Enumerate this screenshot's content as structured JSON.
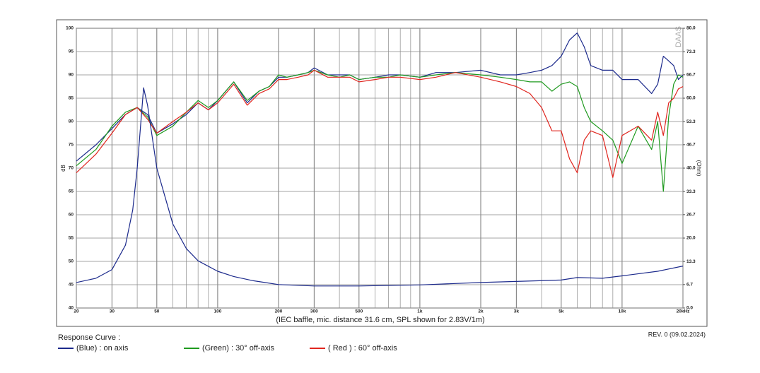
{
  "chart_data": {
    "type": "line",
    "caption": "(IEC baffle, mic. distance 31.6 cm, SPL shown for 2.83V/1m)",
    "legend_title": "Response Curve :",
    "revision": "REV. 0 (09.02.2024)",
    "watermark": "DAAS",
    "ylabel": "dB",
    "y2label": "(Ohm)",
    "xscale": "log",
    "grid": true,
    "xlim": [
      20,
      20000
    ],
    "ylim": [
      40,
      100
    ],
    "y2lim": [
      0,
      80
    ],
    "xticks": [
      20,
      30,
      50,
      100,
      200,
      300,
      500,
      {
        "value": 1000,
        "label": "1k"
      },
      {
        "value": 2000,
        "label": "2k"
      },
      {
        "value": 3000,
        "label": "3k"
      },
      {
        "value": 5000,
        "label": "5k"
      },
      {
        "value": 10000,
        "label": "10k"
      },
      {
        "value": 20000,
        "label": "20kHz"
      }
    ],
    "xminorticks": [
      40,
      60,
      70,
      80,
      90,
      400,
      600,
      700,
      800,
      900,
      4000,
      6000,
      7000,
      8000,
      9000
    ],
    "yticks": [
      40,
      45,
      50,
      55,
      60,
      65,
      70,
      75,
      80,
      85,
      90,
      95,
      100
    ],
    "y2ticks": [
      {
        "value": 0,
        "label": "0.0"
      },
      6.7,
      13.3,
      {
        "value": 20,
        "label": "20.0"
      },
      26.7,
      33.3,
      {
        "value": 40,
        "label": "40.0"
      },
      46.7,
      53.3,
      {
        "value": 60,
        "label": "60.0"
      },
      66.7,
      73.3,
      {
        "value": 80,
        "label": "80.0"
      }
    ],
    "x": [
      20,
      25,
      30,
      35,
      40,
      45,
      50,
      60,
      70,
      80,
      90,
      100,
      120,
      140,
      160,
      180,
      200,
      220,
      250,
      280,
      300,
      350,
      400,
      450,
      500,
      600,
      700,
      800,
      1000,
      1200,
      1500,
      2000,
      2500,
      3000,
      3500,
      4000,
      4500,
      5000,
      5500,
      6000,
      6500,
      7000,
      8000,
      9000,
      10000,
      12000,
      14000,
      15000,
      16000,
      17000,
      18000,
      19000,
      20000
    ],
    "series": [
      {
        "name": "(Blue)  : on axis",
        "color": "#1c2a8c",
        "values": [
          71.5,
          75,
          78.5,
          81.5,
          83,
          81.5,
          77.5,
          79.5,
          81.5,
          84,
          82.5,
          84.5,
          88.5,
          84,
          86.5,
          87.5,
          89.5,
          89.5,
          90,
          90.5,
          91.5,
          90,
          90,
          90,
          89,
          89.5,
          90,
          90,
          89.5,
          90.5,
          90.5,
          91,
          90,
          90,
          90.5,
          91,
          92,
          94,
          97.5,
          99,
          96,
          92,
          91,
          91,
          89,
          89,
          86,
          88,
          94,
          93,
          92,
          89,
          90
        ]
      },
      {
        "name": "(Green) : 30° off-axis",
        "color": "#1f9a1f",
        "values": [
          70.5,
          74,
          79,
          82,
          83,
          81,
          77,
          79,
          82,
          84.5,
          83,
          84.5,
          88.5,
          84.5,
          86.5,
          87.5,
          90,
          89.5,
          90,
          90.5,
          91,
          90,
          89.5,
          90,
          89,
          89.5,
          89.5,
          90,
          89.5,
          90,
          90.5,
          90,
          89.5,
          89,
          88.5,
          88.5,
          86.5,
          88,
          88.5,
          87.5,
          83,
          80,
          78,
          76,
          71,
          79,
          74,
          80,
          65,
          81,
          88,
          90,
          89.5
        ]
      },
      {
        "name": "( Red ) : 60° off-axis",
        "color": "#e0261f",
        "values": [
          69,
          73,
          77.5,
          81.5,
          83,
          80.5,
          77.5,
          80,
          82,
          84,
          82.5,
          84,
          88,
          83.5,
          86,
          87,
          89,
          89,
          89.5,
          90,
          91,
          89.5,
          89.5,
          89.5,
          88.5,
          89,
          89.5,
          89.5,
          89,
          89.5,
          90.5,
          89.5,
          88.5,
          87.5,
          86,
          83,
          78,
          78,
          72,
          69,
          76,
          78,
          77,
          68,
          77,
          79,
          76,
          82,
          77,
          84,
          85,
          87,
          87.5
        ]
      },
      {
        "axis": "y2",
        "color": "#1c2a8c",
        "x": [
          20,
          25,
          30,
          35,
          38,
          40,
          43,
          45,
          50,
          60,
          70,
          80,
          100,
          120,
          150,
          200,
          300,
          500,
          1000,
          2000,
          5000,
          6000,
          8000,
          10000,
          15000,
          20000
        ],
        "values": [
          7.3,
          8.5,
          11,
          18,
          28,
          40,
          63,
          58,
          40,
          24,
          17,
          13.5,
          10.5,
          9,
          7.8,
          6.7,
          6.3,
          6.3,
          6.6,
          7.3,
          8,
          8.7,
          8.5,
          9.2,
          10.5,
          12
        ]
      }
    ]
  }
}
